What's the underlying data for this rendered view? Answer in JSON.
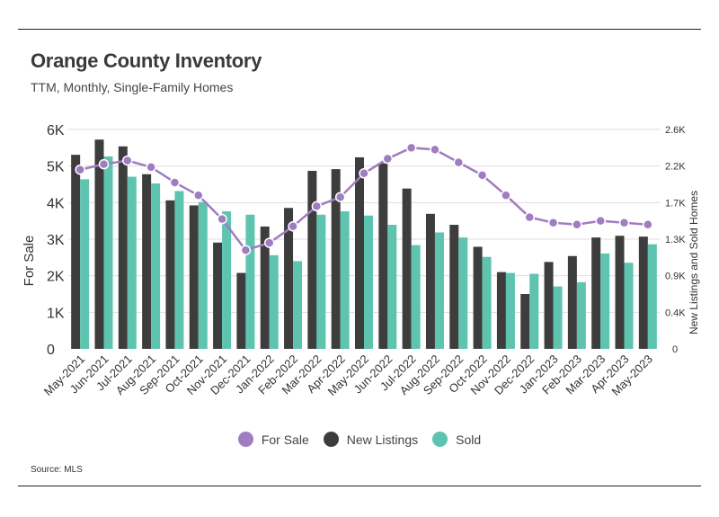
{
  "title": "Orange County Inventory",
  "subtitle": "TTM, Monthly, Single-Family Homes",
  "source": "Source: MLS",
  "colors": {
    "for_sale": "#a07cc0",
    "new_listings": "#3d3d3d",
    "sold": "#5ec4b0",
    "grid": "#dddddd",
    "axis_text": "#333333"
  },
  "chart_data": {
    "type": "bar",
    "categories": [
      "May-2021",
      "Jun-2021",
      "Jul-2021",
      "Aug-2021",
      "Sep-2021",
      "Oct-2021",
      "Nov-2021",
      "Dec-2021",
      "Jan-2022",
      "Feb-2022",
      "Mar-2022",
      "Apr-2022",
      "May-2022",
      "Jun-2022",
      "Jul-2022",
      "Aug-2022",
      "Sep-2022",
      "Oct-2022",
      "Nov-2022",
      "Dec-2022",
      "Jan-2023",
      "Feb-2023",
      "Mar-2023",
      "Apr-2023",
      "May-2023"
    ],
    "ylabel": "For Sale",
    "y2label": "New Listings and Sold Homes",
    "ylim": [
      0,
      6000
    ],
    "y2lim": [
      0,
      2600
    ],
    "yticks": [
      "0",
      "1K",
      "2K",
      "3K",
      "4K",
      "5K",
      "6K"
    ],
    "y2ticks": [
      "0",
      "0.4K",
      "0.9K",
      "1.3K",
      "1.7K",
      "2.2K",
      "2.6K"
    ],
    "grid": true,
    "legend_position": "bottom",
    "series": [
      {
        "name": "For Sale",
        "type": "line",
        "axis": "left",
        "color": "#a07cc0",
        "values": [
          4900,
          5050,
          5150,
          4970,
          4550,
          4200,
          3550,
          2700,
          2900,
          3350,
          3900,
          4150,
          4800,
          5200,
          5500,
          5450,
          5100,
          4750,
          4200,
          3600,
          3450,
          3400,
          3500,
          3450,
          3400
        ]
      },
      {
        "name": "New Listings",
        "type": "bar",
        "axis": "right",
        "color": "#3d3d3d",
        "values": [
          2300,
          2480,
          2400,
          2070,
          1760,
          1700,
          1260,
          900,
          1450,
          1670,
          2110,
          2130,
          2270,
          2200,
          1900,
          1600,
          1470,
          1210,
          910,
          650,
          1030,
          1100,
          1320,
          1340,
          1330
        ]
      },
      {
        "name": "Sold",
        "type": "bar",
        "axis": "right",
        "color": "#5ec4b0",
        "values": [
          2010,
          2280,
          2040,
          1960,
          1870,
          1740,
          1630,
          1590,
          1110,
          1040,
          1590,
          1630,
          1580,
          1470,
          1230,
          1380,
          1320,
          1090,
          900,
          890,
          740,
          790,
          1130,
          1020,
          1240
        ]
      }
    ]
  }
}
